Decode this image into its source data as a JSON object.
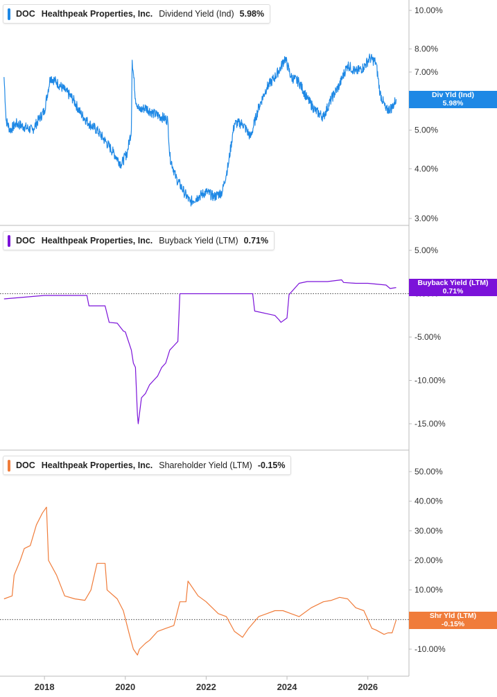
{
  "colors": {
    "panel1": "#1e88e5",
    "panel2": "#7b12d9",
    "panel3": "#f07c3a",
    "axis": "#bbbbbb",
    "grid_dotted": "#444444"
  },
  "panels": [
    {
      "ticker": "DOC",
      "company": "Healthpeak Properties, Inc.",
      "metric": "Dividend Yield (Ind)",
      "value": "5.98%",
      "flag_line1": "Div Yld (Ind)",
      "flag_line2": "5.98%",
      "y_ticks": [
        "10.00%",
        "8.00%",
        "7.00%",
        "6.00%",
        "5.00%",
        "4.00%",
        "3.00%"
      ]
    },
    {
      "ticker": "DOC",
      "company": "Healthpeak Properties, Inc.",
      "metric": "Buyback Yield (LTM)",
      "value": "0.71%",
      "flag_line1": "Buyback Yield (LTM)",
      "flag_line2": "0.71%",
      "y_ticks": [
        "5.00%",
        "0.00%",
        "-5.00%",
        "-10.00%",
        "-15.00%"
      ]
    },
    {
      "ticker": "DOC",
      "company": "Healthpeak Properties, Inc.",
      "metric": "Shareholder Yield (LTM)",
      "value": "-0.15%",
      "flag_line1": "Shr Yld (LTM)",
      "flag_line2": "-0.15%",
      "y_ticks": [
        "50.00%",
        "40.00%",
        "30.00%",
        "20.00%",
        "10.00%",
        "0.00%",
        "-10.00%"
      ]
    }
  ],
  "x_ticks": [
    "2018",
    "2020",
    "2022",
    "2024",
    "2026"
  ],
  "chart_data": [
    {
      "type": "line",
      "title": "DOC Healthpeak Properties, Inc. Dividend Yield (Ind) 5.98%",
      "scale": "log",
      "ylim": [
        3.0,
        10.0
      ],
      "y_tick_values": [
        10,
        8,
        7,
        6,
        5,
        4,
        3
      ],
      "x_tick_values": [
        2018,
        2020,
        2022,
        2024,
        2026
      ],
      "xlim": [
        2016.9,
        2027.0
      ],
      "series": [
        {
          "name": "Dividend Yield (Ind)",
          "x": [
            2017.0,
            2017.05,
            2017.15,
            2017.3,
            2017.5,
            2017.7,
            2017.85,
            2018.0,
            2018.15,
            2018.3,
            2018.5,
            2018.7,
            2018.9,
            2019.1,
            2019.3,
            2019.5,
            2019.7,
            2019.9,
            2020.05,
            2020.15,
            2020.17,
            2020.25,
            2020.35,
            2020.5,
            2020.7,
            2020.9,
            2021.05,
            2021.1,
            2021.25,
            2021.45,
            2021.6,
            2021.8,
            2022.0,
            2022.2,
            2022.4,
            2022.55,
            2022.7,
            2022.9,
            2023.1,
            2023.3,
            2023.5,
            2023.7,
            2023.85,
            2023.95,
            2024.1,
            2024.3,
            2024.5,
            2024.7,
            2024.9,
            2025.1,
            2025.3,
            2025.5,
            2025.7,
            2025.9,
            2026.05,
            2026.2,
            2026.3,
            2026.45,
            2026.6,
            2026.7
          ],
          "values": [
            6.8,
            5.3,
            5.0,
            5.2,
            5.1,
            5.0,
            5.3,
            5.6,
            6.8,
            6.6,
            6.3,
            6.0,
            5.5,
            5.2,
            5.0,
            4.7,
            4.4,
            4.1,
            4.4,
            5.0,
            7.5,
            6.0,
            5.6,
            5.7,
            5.5,
            5.4,
            5.3,
            4.3,
            3.8,
            3.5,
            3.3,
            3.4,
            3.5,
            3.4,
            3.5,
            4.1,
            5.2,
            5.2,
            4.8,
            5.7,
            6.4,
            6.8,
            7.2,
            7.6,
            6.8,
            6.6,
            6.0,
            5.6,
            5.4,
            6.0,
            6.5,
            7.3,
            7.0,
            7.2,
            7.6,
            7.4,
            6.2,
            5.6,
            5.7,
            5.98
          ]
        }
      ]
    },
    {
      "type": "line",
      "title": "DOC Healthpeak Properties, Inc. Buyback Yield (LTM) 0.71%",
      "ylim": [
        -15.0,
        5.0
      ],
      "y_tick_values": [
        5,
        0,
        -5,
        -10,
        -15
      ],
      "x_tick_values": [
        2018,
        2020,
        2022,
        2024,
        2026
      ],
      "xlim": [
        2016.9,
        2027.0
      ],
      "series": [
        {
          "name": "Buyback Yield (LTM)",
          "x": [
            2017.0,
            2017.5,
            2018.0,
            2018.5,
            2019.05,
            2019.1,
            2019.5,
            2019.6,
            2019.8,
            2019.95,
            2020.0,
            2020.15,
            2020.2,
            2020.25,
            2020.3,
            2020.32,
            2020.4,
            2020.5,
            2020.6,
            2020.7,
            2020.8,
            2020.9,
            2021.0,
            2021.1,
            2021.2,
            2021.3,
            2021.35,
            2021.5,
            2022.0,
            2022.5,
            2023.0,
            2023.15,
            2023.2,
            2023.5,
            2023.7,
            2023.8,
            2023.85,
            2024.0,
            2024.05,
            2024.3,
            2024.5,
            2025.0,
            2025.35,
            2025.4,
            2025.7,
            2026.0,
            2026.45,
            2026.55,
            2026.7
          ],
          "values": [
            -0.6,
            -0.4,
            -0.2,
            -0.2,
            -0.2,
            -1.4,
            -1.4,
            -3.3,
            -3.4,
            -4.3,
            -4.4,
            -6.5,
            -8.0,
            -8.5,
            -14.0,
            -15.0,
            -12.0,
            -11.5,
            -10.5,
            -10.0,
            -9.5,
            -8.5,
            -8.0,
            -6.5,
            -6.0,
            -5.5,
            0.0,
            0.0,
            0.0,
            0.0,
            0.0,
            0.0,
            -2.0,
            -2.3,
            -2.5,
            -3.0,
            -3.3,
            -2.8,
            -0.1,
            1.2,
            1.4,
            1.4,
            1.6,
            1.3,
            1.2,
            1.2,
            1.0,
            0.6,
            0.71
          ]
        }
      ]
    },
    {
      "type": "line",
      "title": "DOC Healthpeak Properties, Inc. Shareholder Yield (LTM) -0.15%",
      "ylim": [
        -10.0,
        50.0
      ],
      "y_tick_values": [
        50,
        40,
        30,
        20,
        10,
        0,
        -10
      ],
      "x_tick_values": [
        2018,
        2020,
        2022,
        2024,
        2026
      ],
      "xlim": [
        2016.9,
        2027.0
      ],
      "series": [
        {
          "name": "Shareholder Yield (LTM)",
          "x": [
            2017.0,
            2017.2,
            2017.25,
            2017.4,
            2017.5,
            2017.65,
            2017.8,
            2017.95,
            2018.05,
            2018.1,
            2018.3,
            2018.5,
            2018.75,
            2019.0,
            2019.15,
            2019.3,
            2019.5,
            2019.55,
            2019.8,
            2019.95,
            2020.1,
            2020.2,
            2020.3,
            2020.35,
            2020.5,
            2020.6,
            2020.8,
            2021.0,
            2021.2,
            2021.35,
            2021.5,
            2021.55,
            2021.8,
            2022.0,
            2022.3,
            2022.5,
            2022.7,
            2022.9,
            2023.05,
            2023.3,
            2023.5,
            2023.7,
            2023.9,
            2024.1,
            2024.3,
            2024.6,
            2024.9,
            2025.1,
            2025.3,
            2025.5,
            2025.7,
            2025.9,
            2026.1,
            2026.2,
            2026.4,
            2026.5,
            2026.6,
            2026.7
          ],
          "values": [
            7.0,
            8.0,
            15.0,
            20.0,
            24.0,
            25.0,
            32.0,
            36.0,
            38.0,
            20.0,
            15.0,
            8.0,
            7.0,
            6.5,
            10.0,
            19.0,
            19.0,
            10.0,
            7.0,
            3.0,
            -5.0,
            -10.0,
            -12.0,
            -10.0,
            -8.0,
            -7.0,
            -4.0,
            -3.0,
            -2.0,
            6.0,
            6.0,
            13.0,
            8.0,
            6.0,
            2.0,
            1.0,
            -4.0,
            -6.0,
            -3.0,
            1.0,
            2.0,
            3.0,
            3.0,
            2.0,
            1.0,
            4.0,
            6.0,
            6.5,
            7.5,
            7.0,
            4.0,
            3.0,
            -3.0,
            -3.5,
            -5.0,
            -4.5,
            -4.5,
            -0.15
          ]
        }
      ]
    }
  ]
}
